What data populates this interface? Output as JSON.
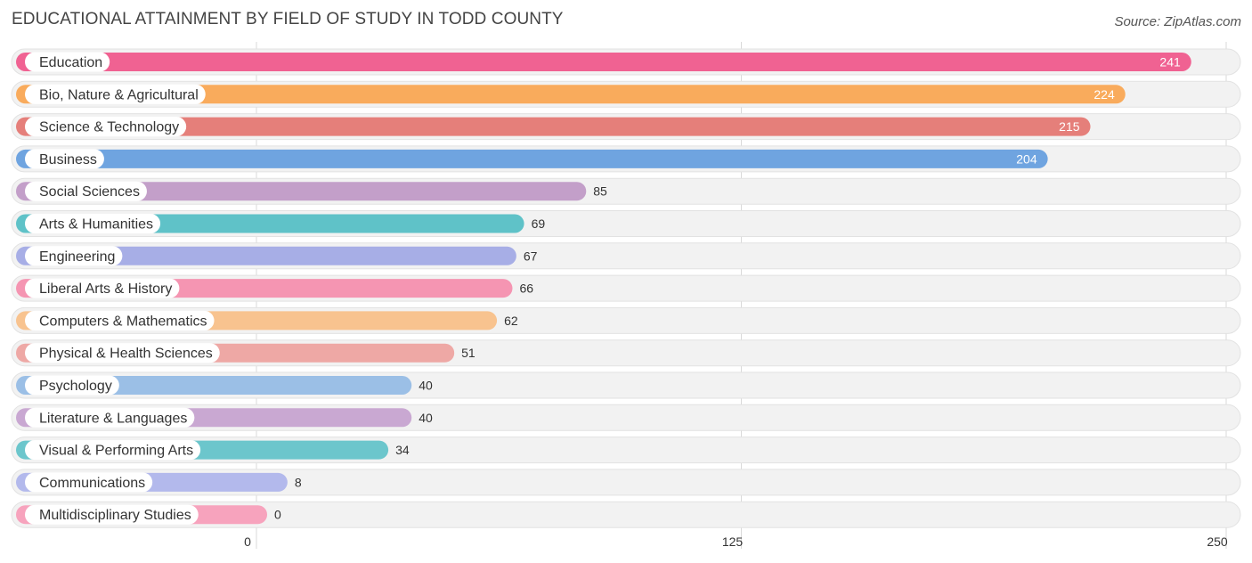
{
  "header": {
    "title": "EDUCATIONAL ATTAINMENT BY FIELD OF STUDY IN TODD COUNTY",
    "source": "Source: ZipAtlas.com"
  },
  "chart_data": {
    "type": "bar",
    "orientation": "horizontal",
    "title": "EDUCATIONAL ATTAINMENT BY FIELD OF STUDY IN TODD COUNTY",
    "xlim": [
      0,
      250
    ],
    "ticks": [
      0,
      125,
      250
    ],
    "tick_labels": [
      "0",
      "125",
      "250"
    ],
    "grid": true,
    "categories": [
      "Education",
      "Bio, Nature & Agricultural",
      "Science & Technology",
      "Business",
      "Social Sciences",
      "Arts & Humanities",
      "Engineering",
      "Liberal Arts & History",
      "Computers & Mathematics",
      "Physical & Health Sciences",
      "Psychology",
      "Literature & Languages",
      "Visual & Performing Arts",
      "Communications",
      "Multidisciplinary Studies"
    ],
    "values": [
      241,
      224,
      215,
      204,
      85,
      69,
      67,
      66,
      62,
      51,
      40,
      40,
      34,
      8,
      0
    ],
    "colors": [
      "#f06292",
      "#f9ab5c",
      "#e57f7a",
      "#6fa4e0",
      "#c39fc9",
      "#5fc2c8",
      "#a7aee6",
      "#f595b2",
      "#f8c38f",
      "#eea8a5",
      "#9bbfe6",
      "#c9a8d2",
      "#6cc6cc",
      "#b3b9ec",
      "#f7a3bd"
    ]
  }
}
